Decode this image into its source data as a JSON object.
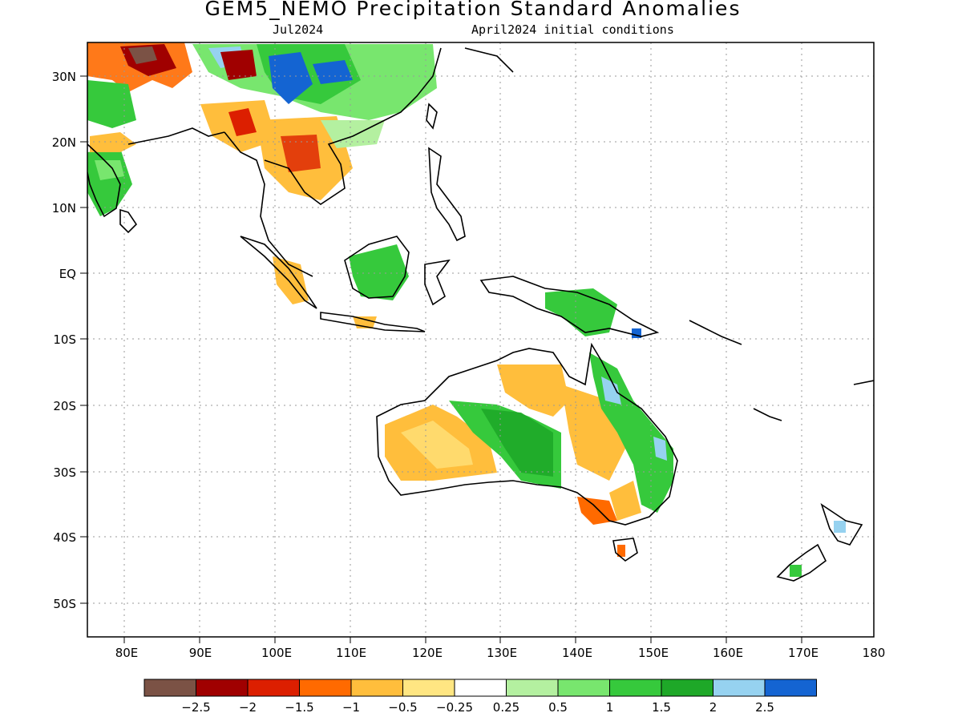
{
  "title": "GEM5_NEMO Precipitation Standard Anomalies",
  "subtitle_left": "Jul2024",
  "subtitle_right": "April2024 initial conditions",
  "lat_labels": [
    "30N",
    "20N",
    "10N",
    "EQ",
    "10S",
    "20S",
    "30S",
    "40S",
    "50S"
  ],
  "lon_labels": [
    "80E",
    "90E",
    "100E",
    "110E",
    "120E",
    "130E",
    "140E",
    "150E",
    "160E",
    "170E",
    "180"
  ],
  "colorbar": {
    "colors": [
      "#7b5245",
      "#a00000",
      "#dc1f00",
      "#ff6a00",
      "#ffbe3c",
      "#ffe682",
      "#ffffff",
      "#b4f0a0",
      "#78e66e",
      "#36c93c",
      "#1ea828",
      "#96d2f0",
      "#1464d2"
    ],
    "labels": [
      "−2.5",
      "−2",
      "−1.5",
      "−1",
      "−0.5",
      "−0.25",
      "0.25",
      "0.5",
      "1",
      "1.5",
      "2",
      "2.5"
    ]
  },
  "map_extent": {
    "lon": [
      75,
      180
    ],
    "lat": [
      -55,
      35
    ]
  }
}
